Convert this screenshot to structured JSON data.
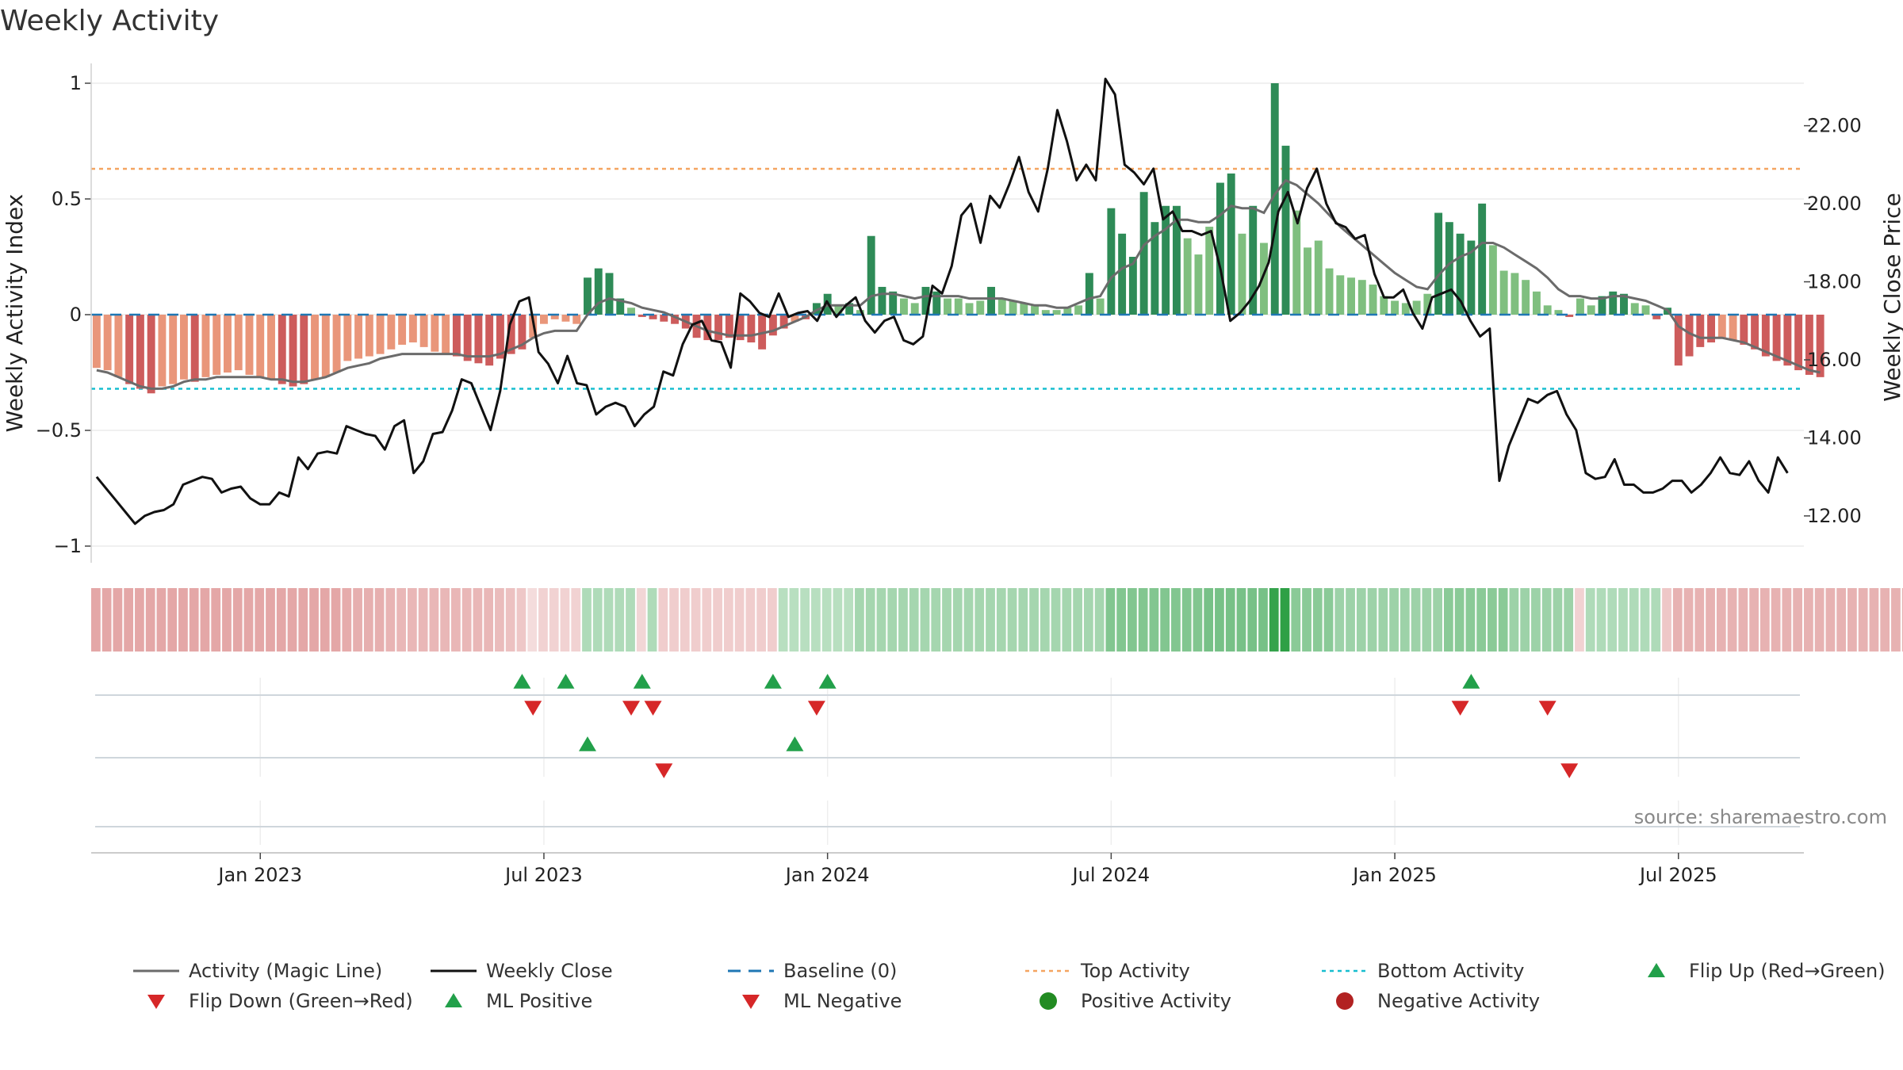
{
  "chart_data": {
    "type": "bar",
    "title": "Weekly Activity",
    "ylabel": "Weekly Activity Index",
    "y2label": "Weekly Close Price",
    "source": "source: sharemaestro.com",
    "ylim": [
      -1.1,
      1.1
    ],
    "y2lim": [
      10.8,
      23.8
    ],
    "yticks": [
      {
        "value": 1,
        "label": "1"
      },
      {
        "value": 0.5,
        "label": "0.5"
      },
      {
        "value": 0,
        "label": "0"
      },
      {
        "value": -0.5,
        "label": "−0.5"
      },
      {
        "value": -1,
        "label": "−1"
      }
    ],
    "y2ticks": [
      {
        "value": 22,
        "label": "22.00"
      },
      {
        "value": 20,
        "label": "20.00"
      },
      {
        "value": 18,
        "label": "18.00"
      },
      {
        "value": 16,
        "label": "16.00"
      },
      {
        "value": 14,
        "label": "14.00"
      },
      {
        "value": 12,
        "label": "12.00"
      }
    ],
    "xticks": [
      {
        "week": 15,
        "label": "Jan 2023"
      },
      {
        "week": 41,
        "label": "Jul 2023"
      },
      {
        "week": 67,
        "label": "Jan 2024"
      },
      {
        "week": 93,
        "label": "Jul 2024"
      },
      {
        "week": 119,
        "label": "Jan 2025"
      },
      {
        "week": 145,
        "label": "Jul 2025"
      }
    ],
    "weeks": 157,
    "top_activity": 0.63,
    "bottom_activity": -0.32,
    "activity": [
      -0.23,
      -0.24,
      -0.27,
      -0.3,
      -0.32,
      -0.34,
      -0.31,
      -0.3,
      -0.28,
      -0.29,
      -0.27,
      -0.26,
      -0.25,
      -0.24,
      -0.26,
      -0.27,
      -0.28,
      -0.3,
      -0.31,
      -0.3,
      -0.28,
      -0.27,
      -0.25,
      -0.2,
      -0.19,
      -0.18,
      -0.17,
      -0.15,
      -0.13,
      -0.12,
      -0.14,
      -0.16,
      -0.17,
      -0.18,
      -0.2,
      -0.21,
      -0.22,
      -0.19,
      -0.17,
      -0.15,
      -0.1,
      -0.04,
      -0.02,
      -0.03,
      -0.04,
      0.16,
      0.2,
      0.18,
      0.07,
      0.03,
      -0.01,
      -0.02,
      -0.03,
      -0.04,
      -0.06,
      -0.1,
      -0.11,
      -0.11,
      -0.1,
      -0.11,
      -0.12,
      -0.15,
      -0.09,
      -0.06,
      -0.03,
      -0.02,
      0.05,
      0.09,
      0.04,
      0.05,
      0.02,
      0.34,
      0.12,
      0.1,
      0.07,
      0.05,
      0.12,
      0.1,
      0.07,
      0.07,
      0.05,
      0.06,
      0.12,
      0.07,
      0.06,
      0.05,
      0.04,
      0.02,
      0.02,
      0.03,
      0.04,
      0.18,
      0.07,
      0.46,
      0.35,
      0.25,
      0.53,
      0.4,
      0.47,
      0.47,
      0.33,
      0.26,
      0.38,
      0.57,
      0.61,
      0.35,
      0.47,
      0.31,
      1.0,
      0.73,
      0.45,
      0.29,
      0.32,
      0.2,
      0.17,
      0.16,
      0.15,
      0.13,
      0.08,
      0.06,
      0.05,
      0.06,
      0.09,
      0.44,
      0.4,
      0.35,
      0.32,
      0.48,
      0.3,
      0.19,
      0.18,
      0.15,
      0.1,
      0.04,
      0.02,
      -0.01,
      0.07,
      0.04,
      0.08,
      0.1,
      0.09,
      0.05,
      0.04,
      -0.02,
      0.03,
      -0.22,
      -0.18,
      -0.14,
      -0.12,
      -0.1,
      -0.11,
      -0.13,
      -0.15,
      -0.18,
      -0.2,
      -0.22,
      -0.24,
      -0.26,
      -0.27
    ],
    "magic_line": [
      -0.24,
      -0.25,
      -0.27,
      -0.29,
      -0.31,
      -0.32,
      -0.32,
      -0.31,
      -0.29,
      -0.28,
      -0.28,
      -0.27,
      -0.27,
      -0.27,
      -0.27,
      -0.27,
      -0.28,
      -0.28,
      -0.29,
      -0.29,
      -0.28,
      -0.27,
      -0.25,
      -0.23,
      -0.22,
      -0.21,
      -0.19,
      -0.18,
      -0.17,
      -0.17,
      -0.17,
      -0.17,
      -0.17,
      -0.17,
      -0.18,
      -0.18,
      -0.18,
      -0.17,
      -0.15,
      -0.13,
      -0.1,
      -0.08,
      -0.07,
      -0.07,
      -0.07,
      0.0,
      0.05,
      0.07,
      0.06,
      0.05,
      0.03,
      0.02,
      0.01,
      -0.01,
      -0.03,
      -0.05,
      -0.07,
      -0.08,
      -0.09,
      -0.09,
      -0.09,
      -0.08,
      -0.07,
      -0.05,
      -0.03,
      -0.01,
      0.02,
      0.04,
      0.04,
      0.04,
      0.04,
      0.08,
      0.09,
      0.09,
      0.08,
      0.07,
      0.08,
      0.08,
      0.08,
      0.08,
      0.07,
      0.07,
      0.07,
      0.07,
      0.06,
      0.05,
      0.04,
      0.04,
      0.03,
      0.03,
      0.05,
      0.07,
      0.08,
      0.16,
      0.2,
      0.22,
      0.3,
      0.34,
      0.37,
      0.41,
      0.41,
      0.4,
      0.4,
      0.43,
      0.47,
      0.46,
      0.46,
      0.44,
      0.52,
      0.58,
      0.56,
      0.52,
      0.48,
      0.43,
      0.38,
      0.34,
      0.3,
      0.26,
      0.22,
      0.18,
      0.15,
      0.12,
      0.11,
      0.17,
      0.22,
      0.25,
      0.27,
      0.31,
      0.31,
      0.29,
      0.26,
      0.23,
      0.2,
      0.16,
      0.11,
      0.08,
      0.08,
      0.07,
      0.07,
      0.08,
      0.08,
      0.07,
      0.06,
      0.04,
      0.02,
      -0.05,
      -0.08,
      -0.1,
      -0.1,
      -0.1,
      -0.11,
      -0.12,
      -0.14,
      -0.16,
      -0.18,
      -0.2,
      -0.22,
      -0.24,
      -0.25
    ],
    "weekly_close": [
      13.0,
      12.7,
      12.4,
      12.1,
      11.8,
      12.0,
      12.1,
      12.15,
      12.3,
      12.8,
      12.9,
      13.0,
      12.95,
      12.6,
      12.7,
      12.75,
      12.45,
      12.3,
      12.3,
      12.6,
      12.5,
      13.5,
      13.2,
      13.6,
      13.65,
      13.6,
      14.3,
      14.2,
      14.1,
      14.05,
      13.7,
      14.3,
      14.45,
      13.1,
      13.4,
      14.1,
      14.15,
      14.7,
      15.5,
      15.4,
      14.8,
      14.2,
      15.2,
      16.9,
      17.5,
      17.6,
      16.2,
      15.9,
      15.4,
      16.1,
      15.4,
      15.35,
      14.6,
      14.8,
      14.9,
      14.8,
      14.3,
      14.6,
      14.8,
      15.7,
      15.6,
      16.4,
      16.9,
      17.0,
      16.5,
      16.45,
      15.8,
      17.7,
      17.5,
      17.2,
      17.1,
      17.7,
      17.1,
      17.2,
      17.25,
      17.0,
      17.5,
      17.1,
      17.4,
      17.6,
      17.0,
      16.7,
      17.0,
      17.1,
      16.5,
      16.4,
      16.6,
      17.9,
      17.7,
      18.4,
      19.7,
      20.0,
      19.0,
      20.2,
      19.9,
      20.5,
      21.2,
      20.3,
      19.8,
      20.9,
      22.4,
      21.6,
      20.6,
      21.0,
      20.6,
      23.2,
      22.8,
      21.0,
      20.8,
      20.5,
      20.9,
      19.6,
      19.8,
      19.3,
      19.3,
      19.2,
      19.3,
      18.3,
      17.0,
      17.2,
      17.5,
      17.9,
      18.5,
      19.8,
      20.3,
      19.5,
      20.4,
      20.9,
      20.0,
      19.5,
      19.4,
      19.1,
      19.2,
      18.2,
      17.6,
      17.6,
      17.8,
      17.2,
      16.8,
      17.6,
      17.7,
      17.8,
      17.5,
      17.0,
      16.6,
      16.8,
      12.9,
      13.8,
      14.4,
      15.0,
      14.9,
      15.1,
      15.2,
      14.6,
      14.2,
      13.1,
      12.95,
      13.0,
      13.45,
      12.8,
      12.8,
      12.6,
      12.6,
      12.7,
      12.9,
      12.9,
      12.6,
      12.8,
      13.1,
      13.5,
      13.1,
      13.05,
      13.4,
      12.9,
      12.6,
      13.5,
      13.1
    ],
    "strip_values": [
      -0.3,
      -0.3,
      -0.3,
      -0.3,
      -0.3,
      -0.3,
      -0.3,
      -0.3,
      -0.3,
      -0.3,
      -0.3,
      -0.3,
      -0.3,
      -0.3,
      -0.3,
      -0.3,
      -0.3,
      -0.3,
      -0.3,
      -0.3,
      -0.3,
      -0.3,
      -0.3,
      -0.28,
      -0.26,
      -0.26,
      -0.26,
      -0.24,
      -0.22,
      -0.22,
      -0.22,
      -0.22,
      -0.22,
      -0.22,
      -0.22,
      -0.22,
      -0.22,
      -0.2,
      -0.18,
      -0.15,
      -0.05,
      -0.1,
      -0.1,
      -0.1,
      -0.1,
      0.2,
      0.2,
      0.2,
      0.2,
      0.2,
      -0.08,
      0.2,
      -0.12,
      -0.12,
      -0.12,
      -0.12,
      -0.12,
      -0.12,
      -0.12,
      -0.12,
      -0.12,
      -0.12,
      -0.12,
      0.15,
      0.15,
      0.15,
      0.15,
      0.15,
      0.15,
      0.15,
      0.25,
      0.25,
      0.25,
      0.25,
      0.25,
      0.25,
      0.25,
      0.25,
      0.25,
      0.25,
      0.25,
      0.25,
      0.25,
      0.25,
      0.25,
      0.25,
      0.25,
      0.25,
      0.25,
      0.25,
      0.25,
      0.25,
      0.25,
      0.45,
      0.45,
      0.45,
      0.45,
      0.45,
      0.45,
      0.45,
      0.45,
      0.45,
      0.5,
      0.5,
      0.5,
      0.5,
      0.5,
      0.5,
      0.85,
      0.9,
      0.4,
      0.4,
      0.4,
      0.4,
      0.3,
      0.3,
      0.3,
      0.3,
      0.3,
      0.3,
      0.3,
      0.3,
      0.3,
      0.3,
      0.4,
      0.4,
      0.4,
      0.4,
      0.4,
      0.4,
      0.3,
      0.3,
      0.3,
      0.3,
      0.3,
      0.3,
      -0.1,
      0.2,
      0.2,
      0.2,
      0.2,
      0.2,
      0.2,
      0.2,
      -0.15,
      -0.25,
      -0.25,
      -0.25,
      -0.25,
      -0.25,
      -0.25,
      -0.25,
      -0.25,
      -0.25,
      -0.25,
      -0.25,
      -0.25,
      -0.25,
      -0.25,
      -0.25,
      -0.25,
      -0.25,
      -0.25,
      -0.25,
      -0.25,
      -0.25,
      -0.25,
      -0.25,
      -0.25,
      -0.25,
      -0.25
    ],
    "flip_up": [
      39,
      43,
      50,
      62,
      67,
      126
    ],
    "flip_down": [
      40,
      49,
      51,
      66,
      125,
      133
    ],
    "ml_positive": [
      45,
      64
    ],
    "ml_negative": [
      52,
      135
    ],
    "colors": {
      "strong_green": "#2e8b57",
      "light_green": "#7fbf7f",
      "strong_red": "#cd5c5c",
      "light_red": "#e9967a",
      "magic_line": "#6b6b6b",
      "close": "#111111",
      "baseline": "#1f77b4",
      "top": "#f4a460",
      "bottom": "#17becf",
      "marker_up": "#22a04a",
      "marker_down": "#d62728",
      "pos_dot": "#228b22",
      "neg_dot": "#b22222"
    },
    "legend": [
      {
        "key": "magic",
        "label": "Activity (Magic Line)"
      },
      {
        "key": "close",
        "label": "Weekly Close"
      },
      {
        "key": "baseline",
        "label": "Baseline (0)"
      },
      {
        "key": "top",
        "label": "Top Activity"
      },
      {
        "key": "bottom",
        "label": "Bottom Activity"
      },
      {
        "key": "flipup",
        "label": "Flip Up (Red→Green)"
      },
      {
        "key": "flipdown",
        "label": "Flip Down (Green→Red)"
      },
      {
        "key": "mlpos",
        "label": "ML Positive"
      },
      {
        "key": "mlneg",
        "label": "ML Negative"
      },
      {
        "key": "posact",
        "label": "Positive Activity"
      },
      {
        "key": "negact",
        "label": "Negative Activity"
      }
    ]
  }
}
